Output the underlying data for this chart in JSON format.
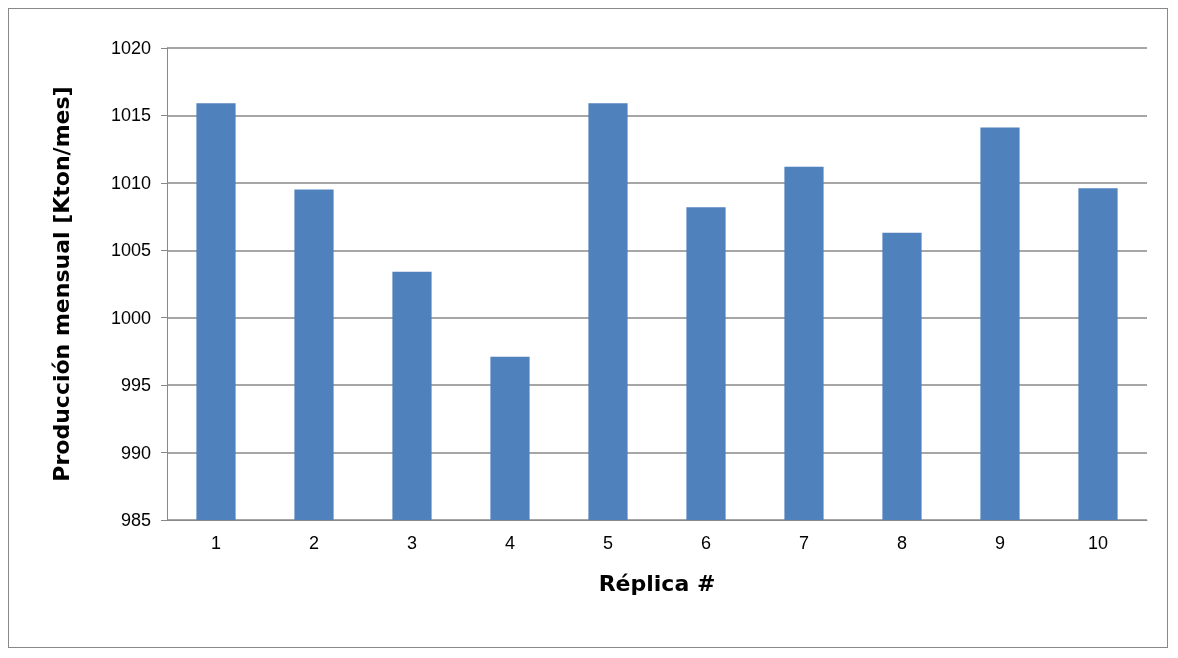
{
  "chart_data": {
    "type": "bar",
    "xlabel": "Réplica #",
    "ylabel": "Producción mensual [Kton/mes]",
    "categories": [
      "1",
      "2",
      "3",
      "4",
      "5",
      "6",
      "7",
      "8",
      "9",
      "10"
    ],
    "values": [
      1015.9,
      1009.5,
      1003.4,
      997.1,
      1015.9,
      1008.2,
      1011.2,
      1006.3,
      1014.1,
      1009.6
    ],
    "color": "#4f81bd",
    "ylim": [
      985,
      1020
    ],
    "yticks": [
      985,
      990,
      995,
      1000,
      1005,
      1010,
      1015,
      1020
    ],
    "grid": "y"
  }
}
